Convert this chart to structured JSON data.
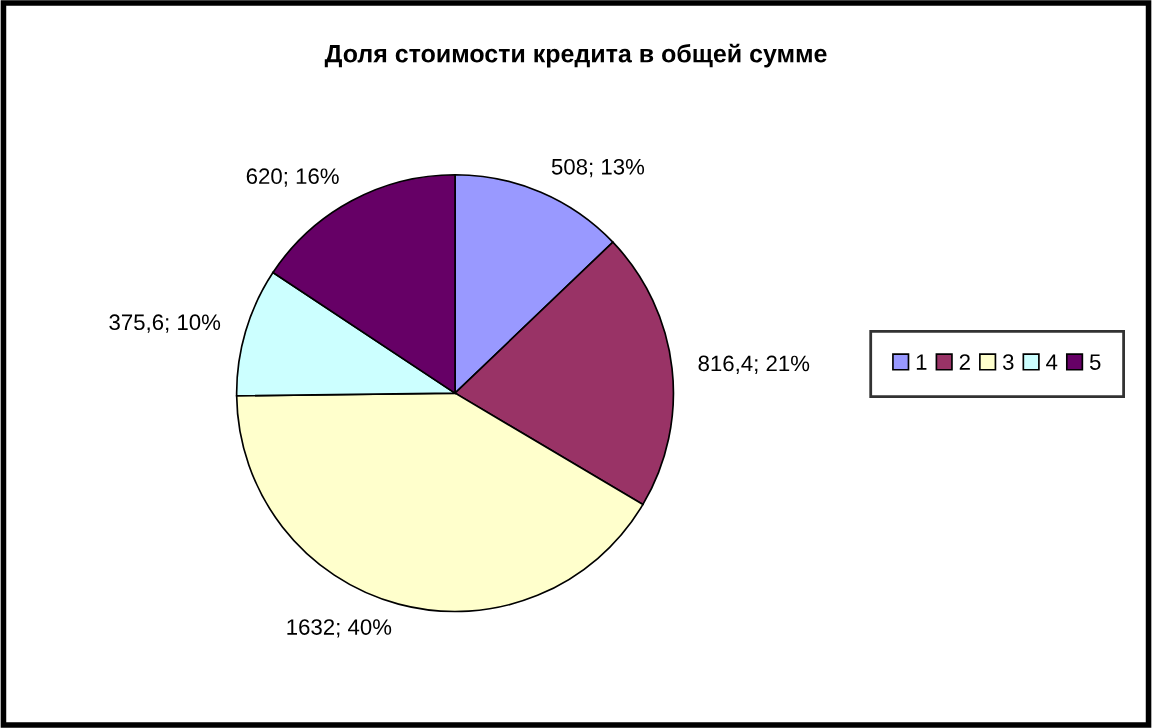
{
  "chart_data": {
    "type": "pie",
    "title": "Доля стоимости кредита в общей сумме",
    "categories": [
      "1",
      "2",
      "3",
      "4",
      "5"
    ],
    "values": [
      508,
      816.4,
      1632,
      375.6,
      620
    ],
    "value_labels": [
      "508; 13%",
      "816,4; 21%",
      "1632; 40%",
      "375,6; 10%",
      "620; 16%"
    ],
    "colors": [
      "#9999ff",
      "#993366",
      "#ffffcc",
      "#ccffff",
      "#660066"
    ],
    "legend": "right"
  }
}
